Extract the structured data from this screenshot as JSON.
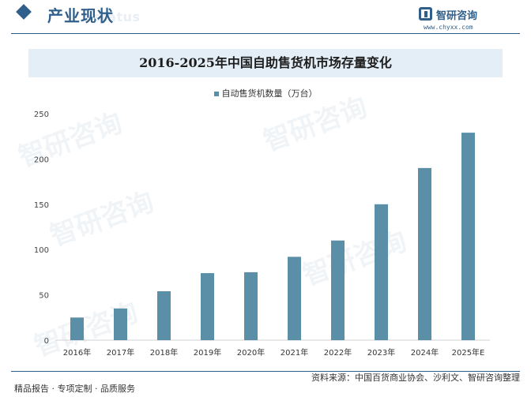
{
  "header": {
    "section_title": "产业现状",
    "section_ghost": "status"
  },
  "logo": {
    "brand": "智研咨询",
    "url": "www.chyxx.com"
  },
  "watermark_text": "智研咨询",
  "chart_data": {
    "type": "bar",
    "title": "2016-2025年中国自助售货机市场存量变化",
    "series": [
      {
        "name": "自动售货机数量（万台）",
        "color": "#5b8fa8",
        "values": [
          25,
          35,
          54,
          74,
          75,
          92,
          110,
          150,
          190,
          229
        ]
      }
    ],
    "categories": [
      "2016年",
      "2017年",
      "2018年",
      "2019年",
      "2020年",
      "2021年",
      "2022年",
      "2023年",
      "2024年",
      "2025年E"
    ],
    "ylim": [
      0,
      250
    ],
    "yticks": [
      "0",
      "50",
      "100",
      "150",
      "200",
      "250"
    ],
    "grid": false,
    "legend": "top-center"
  },
  "footer": {
    "left": "精品报告 · 专项定制 · 品质服务",
    "source": "资料来源：中国百货商业协会、沙利文、智研咨询整理"
  }
}
